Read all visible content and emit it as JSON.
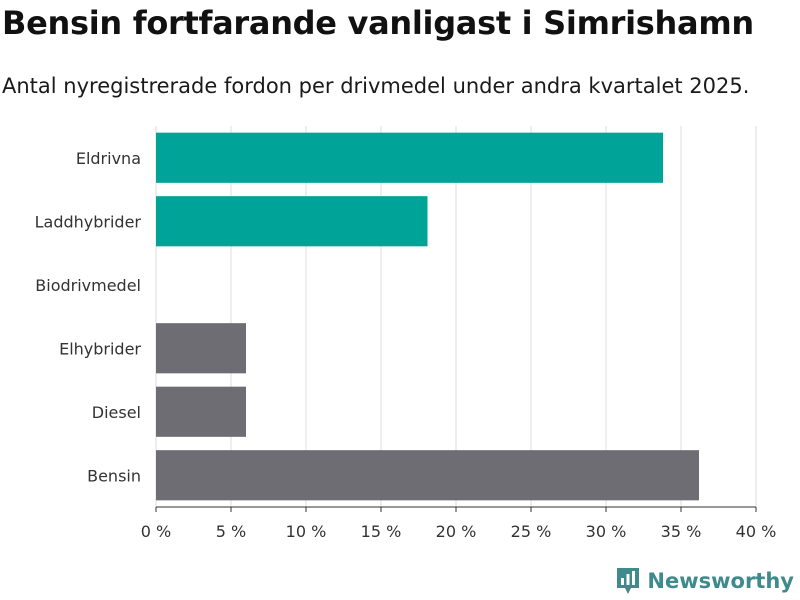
{
  "title": "Bensin fortfarande vanligast i Simrishamn",
  "subtitle": "Antal nyregistrerade fordon per drivmedel under andra kvartalet 2025.",
  "brand": {
    "name": "Newsworthy",
    "icon": "newsworthy-logo-icon"
  },
  "colors": {
    "highlight": "#00a398",
    "neutral": "#6e6d73",
    "grid": "#dcdcdc",
    "brand": "#3f8a8d"
  },
  "chart_data": {
    "type": "bar",
    "orientation": "horizontal",
    "categories": [
      "Eldrivna",
      "Laddhybrider",
      "Biodrivmedel",
      "Elhybrider",
      "Diesel",
      "Bensin"
    ],
    "values": [
      33.8,
      18.1,
      0,
      6.0,
      6.0,
      36.2
    ],
    "bar_colors": [
      "#00a398",
      "#00a398",
      "#00a398",
      "#6e6d73",
      "#6e6d73",
      "#6e6d73"
    ],
    "xlim": [
      0,
      40
    ],
    "xticks": [
      0,
      5,
      10,
      15,
      20,
      25,
      30,
      35,
      40
    ],
    "xtick_labels": [
      "0 %",
      "5 %",
      "10 %",
      "15 %",
      "20 %",
      "25 %",
      "30 %",
      "35 %",
      "40 %"
    ],
    "grid": true
  }
}
